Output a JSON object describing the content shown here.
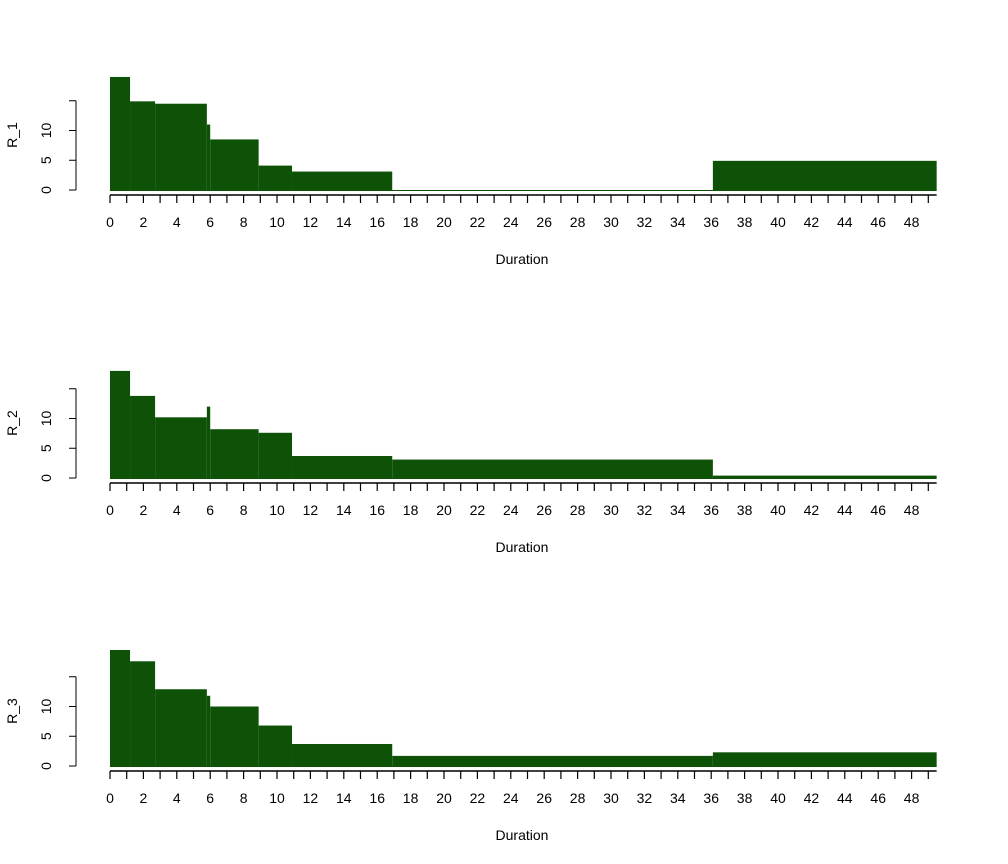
{
  "chart_data": [
    {
      "type": "area",
      "xlabel": "Duration",
      "ylabel": "R_1",
      "xlim": [
        0,
        49.5
      ],
      "ylim": [
        0,
        15
      ],
      "x_ticks": [
        0,
        1,
        2,
        3,
        4,
        5,
        6,
        7,
        8,
        9,
        10,
        11,
        12,
        13,
        14,
        15,
        16,
        17,
        18,
        19,
        20,
        21,
        22,
        23,
        24,
        25,
        26,
        27,
        28,
        29,
        30,
        31,
        32,
        33,
        34,
        35,
        36,
        37,
        38,
        39,
        40,
        41,
        42,
        43,
        44,
        45,
        46,
        47,
        48,
        49
      ],
      "x_tick_labels": [
        "0",
        "2",
        "4",
        "6",
        "8",
        "10",
        "12",
        "14",
        "16",
        "18",
        "20",
        "22",
        "24",
        "26",
        "28",
        "30",
        "32",
        "34",
        "36",
        "38",
        "40",
        "42",
        "44",
        "46",
        "48"
      ],
      "y_tick_labels": [
        "0",
        "5",
        "10"
      ],
      "y_ticks": [
        0,
        5,
        10,
        15
      ],
      "fill_color": "#0d5206",
      "steps": [
        {
          "x0": 0,
          "x1": 1.2,
          "y": 19
        },
        {
          "x0": 1.2,
          "x1": 2.7,
          "y": 14.9
        },
        {
          "x0": 2.7,
          "x1": 5.8,
          "y": 14.5
        },
        {
          "x0": 5.8,
          "x1": 6,
          "y": 11
        },
        {
          "x0": 6,
          "x1": 8.9,
          "y": 8.5
        },
        {
          "x0": 8.9,
          "x1": 10.9,
          "y": 4.1
        },
        {
          "x0": 10.9,
          "x1": 16.9,
          "y": 3.1
        },
        {
          "x0": 16.9,
          "x1": 36.1,
          "y": 0
        },
        {
          "x0": 36.1,
          "x1": 49.5,
          "y": 4.9
        }
      ]
    },
    {
      "type": "area",
      "xlabel": "Duration",
      "ylabel": "R_2",
      "xlim": [
        0,
        49.5
      ],
      "ylim": [
        0,
        15
      ],
      "x_ticks": [
        0,
        1,
        2,
        3,
        4,
        5,
        6,
        7,
        8,
        9,
        10,
        11,
        12,
        13,
        14,
        15,
        16,
        17,
        18,
        19,
        20,
        21,
        22,
        23,
        24,
        25,
        26,
        27,
        28,
        29,
        30,
        31,
        32,
        33,
        34,
        35,
        36,
        37,
        38,
        39,
        40,
        41,
        42,
        43,
        44,
        45,
        46,
        47,
        48,
        49
      ],
      "x_tick_labels": [
        "0",
        "2",
        "4",
        "6",
        "8",
        "10",
        "12",
        "14",
        "16",
        "18",
        "20",
        "22",
        "24",
        "26",
        "28",
        "30",
        "32",
        "34",
        "36",
        "38",
        "40",
        "42",
        "44",
        "46",
        "48"
      ],
      "y_tick_labels": [
        "0",
        "5",
        "10"
      ],
      "y_ticks": [
        0,
        5,
        10,
        15
      ],
      "fill_color": "#0d5206",
      "steps": [
        {
          "x0": 0,
          "x1": 1.2,
          "y": 18
        },
        {
          "x0": 1.2,
          "x1": 2.7,
          "y": 13.8
        },
        {
          "x0": 2.7,
          "x1": 5.8,
          "y": 10.2
        },
        {
          "x0": 5.8,
          "x1": 6,
          "y": 12
        },
        {
          "x0": 6,
          "x1": 8.9,
          "y": 8.2
        },
        {
          "x0": 8.9,
          "x1": 10.9,
          "y": 7.6
        },
        {
          "x0": 10.9,
          "x1": 16.9,
          "y": 3.7
        },
        {
          "x0": 16.9,
          "x1": 36.1,
          "y": 3.1
        },
        {
          "x0": 36.1,
          "x1": 49.5,
          "y": 0.4
        }
      ]
    },
    {
      "type": "area",
      "xlabel": "Duration",
      "ylabel": "R_3",
      "xlim": [
        0,
        49.5
      ],
      "ylim": [
        0,
        15
      ],
      "x_ticks": [
        0,
        1,
        2,
        3,
        4,
        5,
        6,
        7,
        8,
        9,
        10,
        11,
        12,
        13,
        14,
        15,
        16,
        17,
        18,
        19,
        20,
        21,
        22,
        23,
        24,
        25,
        26,
        27,
        28,
        29,
        30,
        31,
        32,
        33,
        34,
        35,
        36,
        37,
        38,
        39,
        40,
        41,
        42,
        43,
        44,
        45,
        46,
        47,
        48,
        49
      ],
      "x_tick_labels": [
        "0",
        "2",
        "4",
        "6",
        "8",
        "10",
        "12",
        "14",
        "16",
        "18",
        "20",
        "22",
        "24",
        "26",
        "28",
        "30",
        "32",
        "34",
        "36",
        "38",
        "40",
        "42",
        "44",
        "46",
        "48"
      ],
      "y_tick_labels": [
        "0",
        "5",
        "10"
      ],
      "y_ticks": [
        0,
        5,
        10,
        15
      ],
      "fill_color": "#0d5206",
      "steps": [
        {
          "x0": 0,
          "x1": 1.2,
          "y": 19.5
        },
        {
          "x0": 1.2,
          "x1": 2.7,
          "y": 17.6
        },
        {
          "x0": 2.7,
          "x1": 5.8,
          "y": 12.9
        },
        {
          "x0": 5.8,
          "x1": 6,
          "y": 11.8
        },
        {
          "x0": 6,
          "x1": 8.9,
          "y": 10
        },
        {
          "x0": 8.9,
          "x1": 10.9,
          "y": 6.8
        },
        {
          "x0": 10.9,
          "x1": 16.9,
          "y": 3.7
        },
        {
          "x0": 16.9,
          "x1": 36.1,
          "y": 1.7
        },
        {
          "x0": 36.1,
          "x1": 49.5,
          "y": 2.3
        }
      ]
    }
  ]
}
